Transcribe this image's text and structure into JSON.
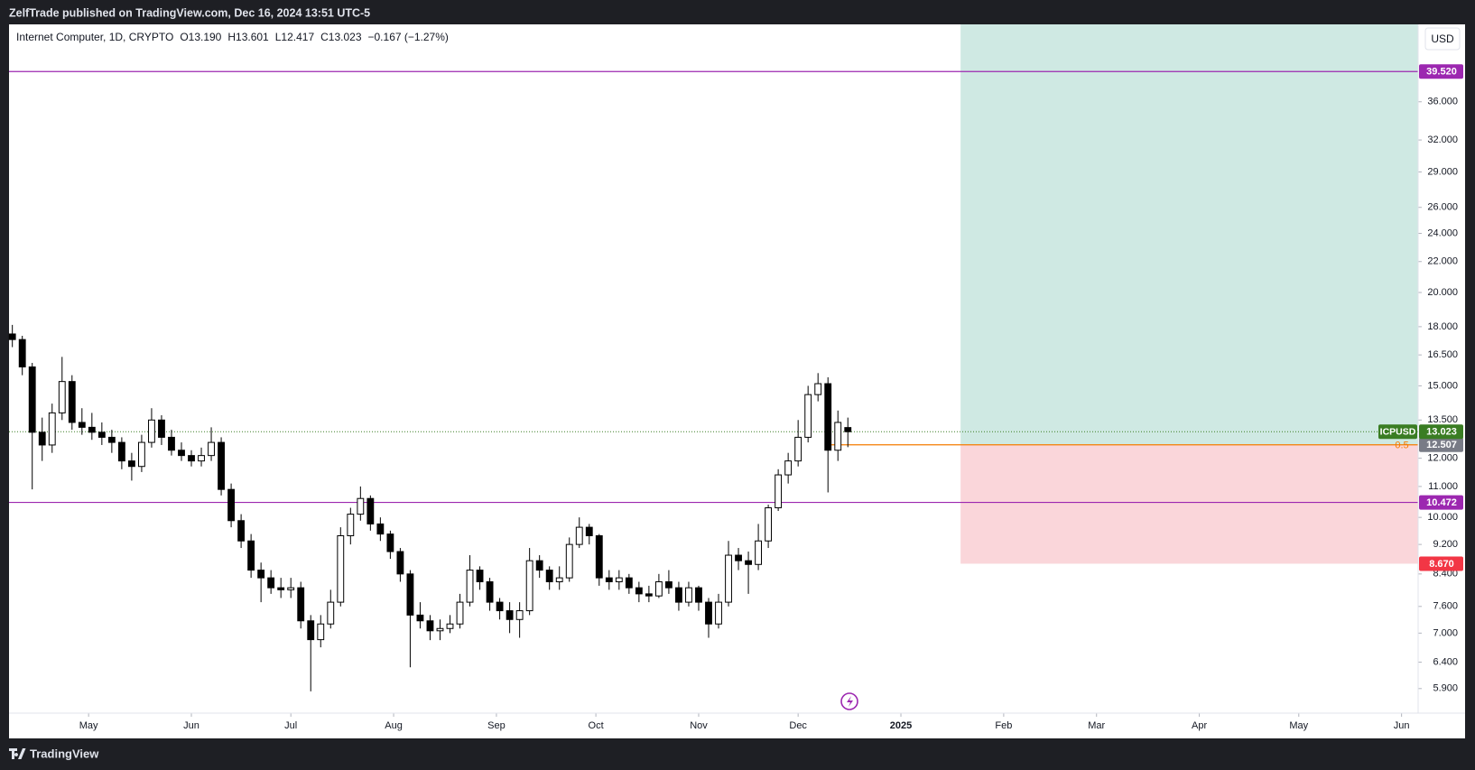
{
  "header": {
    "text": "ZelfTrade published on TradingView.com, Dec 16, 2024 13:51 UTC-5"
  },
  "footer": {
    "brand": "TradingView"
  },
  "chart_data": {
    "type": "candlestick",
    "title": "Internet Computer, 1D, CRYPTO",
    "legend_values": [
      "O13.190",
      "H13.601",
      "L12.417",
      "C13.023",
      "−0.167 (−1.27%)"
    ],
    "currency": "USD",
    "log_scale": true,
    "up_color": "#ffffff",
    "down_color": "#000000",
    "x": [
      1,
      4,
      7,
      10,
      13,
      16,
      19,
      22,
      25,
      28,
      31,
      34,
      37,
      40,
      43,
      46,
      49,
      52,
      55,
      58,
      61,
      64,
      67,
      70,
      73,
      76,
      79,
      82,
      85,
      88,
      91,
      94,
      97,
      100,
      103,
      106,
      109,
      112,
      115,
      118,
      121,
      124,
      127,
      130,
      133,
      136,
      139,
      142,
      145,
      148,
      151,
      154,
      157,
      160,
      163,
      166,
      169,
      172,
      175,
      178,
      181,
      184,
      187,
      190,
      193,
      196,
      199,
      202,
      205,
      208,
      211,
      214,
      217,
      220,
      223,
      226,
      229,
      232,
      235,
      238,
      241,
      244,
      247,
      250,
      253
    ],
    "open": [
      17.6,
      17.3,
      15.9,
      13.0,
      12.5,
      13.8,
      15.2,
      13.4,
      13.2,
      13.0,
      12.8,
      12.6,
      11.9,
      11.7,
      12.6,
      13.5,
      12.8,
      12.3,
      12.1,
      11.9,
      12.1,
      12.6,
      10.9,
      9.9,
      9.3,
      8.5,
      8.3,
      8.05,
      8.0,
      8.05,
      7.27,
      6.86,
      7.2,
      7.7,
      9.45,
      10.1,
      10.6,
      9.8,
      9.5,
      9.0,
      8.4,
      7.4,
      7.27,
      7.05,
      7.1,
      7.2,
      7.7,
      8.5,
      8.2,
      7.7,
      7.5,
      7.3,
      7.5,
      8.75,
      8.5,
      8.2,
      8.3,
      9.2,
      9.7,
      9.45,
      8.3,
      8.2,
      8.3,
      8.05,
      7.9,
      7.85,
      8.2,
      8.05,
      7.7,
      8.05,
      7.7,
      7.2,
      7.7,
      8.9,
      8.75,
      8.65,
      9.3,
      10.3,
      11.4,
      11.9,
      12.8,
      14.6,
      15.1,
      12.3,
      13.19
    ],
    "high": [
      18.1,
      17.5,
      16.1,
      13.6,
      14.2,
      16.4,
      15.5,
      14.0,
      13.8,
      13.4,
      13.1,
      12.8,
      12.2,
      12.9,
      14.0,
      13.7,
      13.1,
      12.6,
      12.3,
      12.4,
      13.2,
      12.8,
      11.1,
      10.1,
      9.5,
      8.7,
      8.5,
      8.3,
      8.3,
      8.2,
      7.4,
      7.4,
      8.0,
      9.7,
      10.3,
      11.0,
      10.7,
      10.0,
      9.6,
      9.1,
      8.5,
      7.7,
      7.4,
      7.3,
      7.4,
      7.9,
      8.9,
      8.6,
      8.3,
      7.8,
      7.7,
      7.7,
      9.1,
      8.9,
      8.6,
      8.6,
      9.4,
      10.0,
      9.8,
      9.5,
      8.5,
      8.5,
      8.4,
      8.2,
      8.1,
      8.4,
      8.5,
      8.2,
      8.2,
      8.1,
      7.8,
      7.9,
      9.3,
      9.1,
      9.0,
      9.8,
      10.4,
      11.6,
      12.2,
      13.5,
      15.0,
      15.6,
      15.4,
      13.9,
      13.601
    ],
    "low": [
      16.9,
      15.5,
      10.9,
      11.9,
      12.2,
      13.5,
      13.1,
      12.9,
      12.7,
      12.5,
      12.2,
      11.6,
      11.2,
      11.5,
      12.4,
      12.5,
      12.1,
      11.9,
      11.7,
      11.7,
      11.9,
      10.7,
      9.7,
      9.1,
      8.3,
      7.7,
      7.9,
      7.8,
      7.8,
      7.1,
      5.85,
      6.7,
      7.1,
      7.6,
      9.2,
      9.9,
      9.6,
      9.3,
      8.8,
      8.2,
      6.3,
      7.1,
      6.85,
      6.85,
      7.0,
      7.1,
      7.6,
      8.0,
      7.5,
      7.3,
      7.0,
      6.9,
      7.4,
      8.3,
      8.0,
      8.0,
      8.2,
      9.1,
      9.2,
      8.1,
      8.0,
      8.0,
      7.9,
      7.7,
      7.7,
      7.8,
      7.9,
      7.5,
      7.6,
      7.5,
      6.9,
      7.1,
      7.6,
      8.5,
      7.9,
      8.5,
      9.1,
      10.2,
      11.1,
      11.7,
      12.6,
      14.3,
      10.8,
      11.9,
      12.417
    ],
    "close": [
      17.3,
      15.9,
      13.0,
      12.5,
      13.8,
      15.2,
      13.4,
      13.2,
      13.0,
      12.8,
      12.6,
      11.9,
      11.7,
      12.6,
      13.5,
      12.8,
      12.3,
      12.1,
      11.9,
      12.1,
      12.6,
      10.9,
      9.9,
      9.3,
      8.5,
      8.3,
      8.05,
      8.0,
      8.05,
      7.27,
      6.86,
      7.2,
      7.7,
      9.45,
      10.1,
      10.6,
      9.8,
      9.5,
      9.0,
      8.4,
      7.4,
      7.27,
      7.05,
      7.1,
      7.2,
      7.7,
      8.5,
      8.2,
      7.7,
      7.5,
      7.3,
      7.5,
      8.75,
      8.5,
      8.2,
      8.3,
      9.2,
      9.7,
      9.45,
      8.3,
      8.2,
      8.3,
      8.05,
      7.9,
      7.85,
      8.2,
      8.05,
      7.7,
      8.05,
      7.7,
      7.2,
      7.7,
      8.9,
      8.75,
      8.65,
      9.3,
      10.3,
      11.4,
      11.9,
      12.8,
      14.6,
      15.1,
      12.3,
      13.4,
      13.023
    ],
    "xlim": [
      0,
      425
    ],
    "xticks": [
      {
        "value": 24,
        "label": "May"
      },
      {
        "value": 55,
        "label": "Jun"
      },
      {
        "value": 85,
        "label": "Jul"
      },
      {
        "value": 116,
        "label": "Aug"
      },
      {
        "value": 147,
        "label": "Sep"
      },
      {
        "value": 177,
        "label": "Oct"
      },
      {
        "value": 208,
        "label": "Nov"
      },
      {
        "value": 238,
        "label": "Dec"
      },
      {
        "value": 269,
        "label": "2025"
      },
      {
        "value": 300,
        "label": "Feb"
      },
      {
        "value": 328,
        "label": "Mar"
      },
      {
        "value": 359,
        "label": "Apr"
      },
      {
        "value": 389,
        "label": "May"
      },
      {
        "value": 420,
        "label": "Jun"
      }
    ],
    "ylim": [
      5.47,
      45.7
    ],
    "yticks": [
      {
        "value": 5.9,
        "label": "5.900"
      },
      {
        "value": 6.4,
        "label": "6.400"
      },
      {
        "value": 7,
        "label": "7.000"
      },
      {
        "value": 7.6,
        "label": "7.600"
      },
      {
        "value": 8.4,
        "label": "8.400"
      },
      {
        "value": 9.2,
        "label": "9.200"
      },
      {
        "value": 10,
        "label": "10.000"
      },
      {
        "value": 11,
        "label": "11.000"
      },
      {
        "value": 12,
        "label": "12.000"
      },
      {
        "value": 13.5,
        "label": "13.500"
      },
      {
        "value": 15,
        "label": "15.000"
      },
      {
        "value": 16.5,
        "label": "16.500"
      },
      {
        "value": 18,
        "label": "18.000"
      },
      {
        "value": 20,
        "label": "20.000"
      },
      {
        "value": 22,
        "label": "22.000"
      },
      {
        "value": 24,
        "label": "24.000"
      },
      {
        "value": 26,
        "label": "26.000"
      },
      {
        "value": 29,
        "label": "29.000"
      },
      {
        "value": 32,
        "label": "32.000"
      },
      {
        "value": 36,
        "label": "36.000"
      }
    ],
    "horizontal_lines": [
      {
        "value": 39.52,
        "label": "39.520",
        "color": "#9c27b0"
      },
      {
        "value": 10.472,
        "label": "10.472",
        "color": "#9c27b0"
      }
    ],
    "last_price": {
      "value": 13.023,
      "label": "13.023",
      "symbol": "ICPUSD",
      "color": "#3a7d23"
    },
    "entry": {
      "value": 12.507,
      "label": "12.507",
      "from_x": 248,
      "level": "0.5",
      "color": "#f57c00",
      "label_color": "#787b86"
    },
    "position": {
      "x_start": 287,
      "stop": 8.67,
      "stop_label": "8.670",
      "profit_color": "#cfe9e3",
      "loss_color": "#fad6da",
      "stop_color": "#f23645"
    }
  }
}
